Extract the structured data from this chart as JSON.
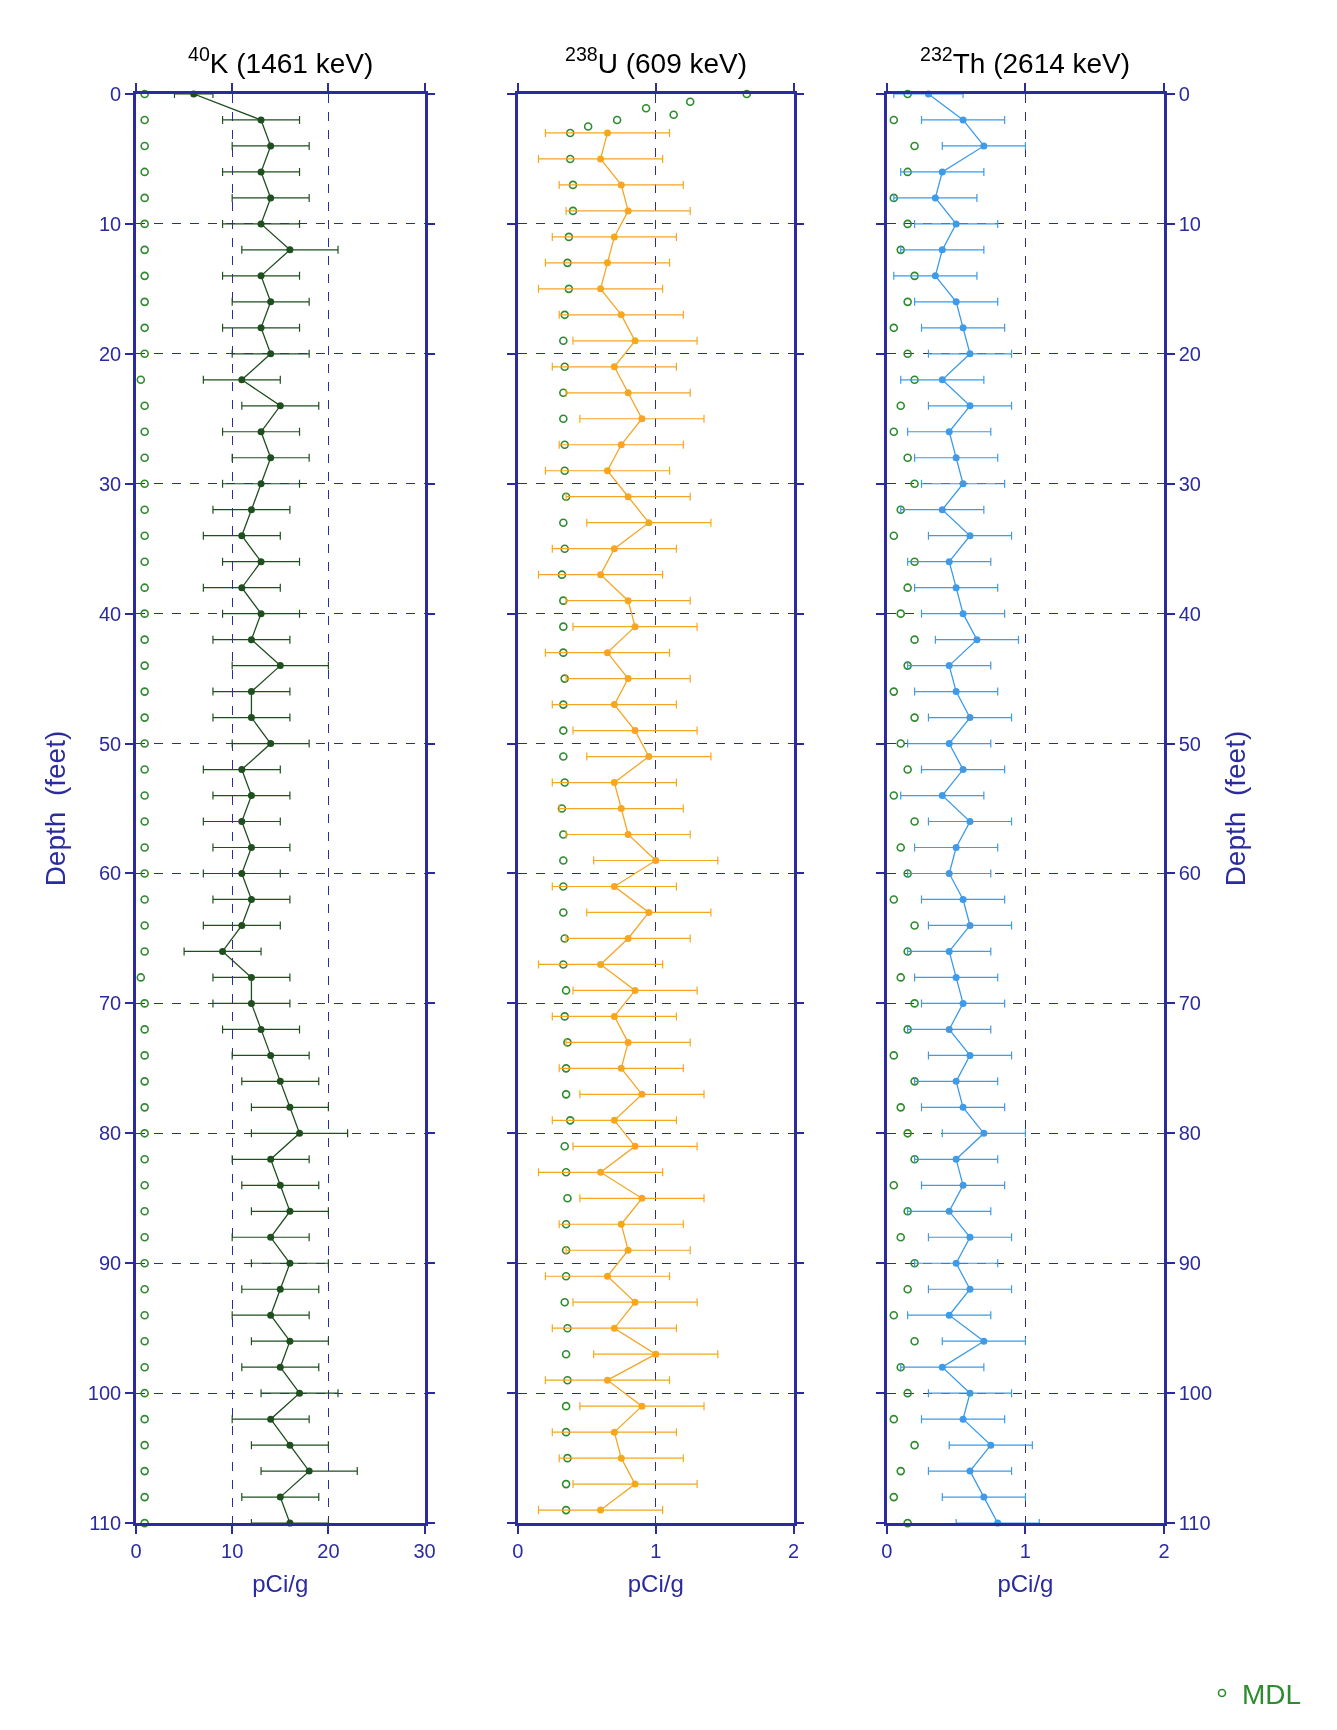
{
  "chart_data": [
    {
      "type": "line",
      "title": "$^{40}$K (1461 keV)",
      "xlabel": "pCi/g",
      "ylabel": "Depth  (feet)",
      "xlim": [
        0,
        30
      ],
      "xticks": [
        0,
        10,
        20,
        30
      ],
      "ylim": [
        110,
        0
      ],
      "yticks": [
        0,
        10,
        20,
        30,
        40,
        50,
        60,
        70,
        80,
        90,
        100,
        110
      ],
      "grid": true,
      "legend": false,
      "series": [
        {
          "type": "scatter",
          "color": "#2e8b2e",
          "marker": "circle",
          "x": [
            0.9,
            0.9,
            0.9,
            0.9,
            0.9,
            0.9,
            0.9,
            0.9,
            0.9,
            0.9,
            0.9,
            0.5,
            0.9,
            0.9,
            0.9,
            0.9,
            0.9,
            0.9,
            0.9,
            0.9,
            0.9,
            0.9,
            0.9,
            0.9,
            0.9,
            0.9,
            0.9,
            0.9,
            0.9,
            0.9,
            0.9,
            0.9,
            0.9,
            0.9,
            0.5,
            0.9,
            0.9,
            0.9,
            0.9,
            0.9,
            0.9,
            0.9,
            0.9,
            0.9,
            0.9,
            0.9,
            0.9,
            0.9,
            0.9,
            0.9,
            0.9,
            0.9,
            0.9,
            0.9,
            0.9,
            0.9
          ],
          "values": [
            0,
            2,
            4,
            6,
            8,
            10,
            12,
            14,
            16,
            18,
            20,
            22,
            24,
            26,
            28,
            30,
            32,
            34,
            36,
            38,
            40,
            42,
            44,
            46,
            48,
            50,
            52,
            54,
            56,
            58,
            60,
            62,
            64,
            66,
            68,
            70,
            72,
            74,
            76,
            78,
            80,
            82,
            84,
            86,
            88,
            90,
            92,
            94,
            96,
            98,
            100,
            102,
            104,
            106,
            108,
            110
          ]
        },
        {
          "color": "#1f4f1f",
          "marker": "circle",
          "line_style": "solid",
          "x": [
            6,
            13,
            14,
            13,
            14,
            13,
            16,
            13,
            14,
            13,
            14,
            11,
            15,
            13,
            14,
            13,
            12,
            11,
            13,
            11,
            13,
            12,
            15,
            12,
            12,
            14,
            11,
            12,
            11,
            12,
            11,
            12,
            11,
            9,
            12,
            12,
            13,
            14,
            15,
            16,
            17,
            14,
            15,
            16,
            14,
            16,
            15,
            14,
            16,
            15,
            17,
            14,
            16,
            18,
            15,
            16
          ],
          "values": [
            0,
            2,
            4,
            6,
            8,
            10,
            12,
            14,
            16,
            18,
            20,
            22,
            24,
            26,
            28,
            30,
            32,
            34,
            36,
            38,
            40,
            42,
            44,
            46,
            48,
            50,
            52,
            54,
            56,
            58,
            60,
            62,
            64,
            66,
            68,
            70,
            72,
            74,
            76,
            78,
            80,
            82,
            84,
            86,
            88,
            90,
            92,
            94,
            96,
            98,
            100,
            102,
            104,
            106,
            108,
            110
          ],
          "xerrors": [
            2,
            4,
            4,
            4,
            4,
            4,
            5,
            4,
            4,
            4,
            4,
            4,
            4,
            4,
            4,
            4,
            4,
            4,
            4,
            4,
            4,
            4,
            5,
            4,
            4,
            4,
            4,
            4,
            4,
            4,
            4,
            4,
            4,
            4,
            4,
            4,
            4,
            4,
            4,
            4,
            5,
            4,
            4,
            4,
            4,
            4,
            4,
            4,
            4,
            4,
            4,
            4,
            4,
            5,
            4,
            4
          ]
        }
      ]
    },
    {
      "type": "line",
      "title": "$^{238}$U (609 keV)",
      "xlabel": "pCi/g",
      "xlim": [
        0,
        2
      ],
      "xticks": [
        0,
        1,
        2
      ],
      "ylim": [
        110,
        0
      ],
      "yticks": [
        0,
        10,
        20,
        30,
        40,
        50,
        60,
        70,
        80,
        90,
        100,
        110
      ],
      "tick_labels": "x",
      "grid": true,
      "legend": false,
      "series": [
        {
          "type": "scatter",
          "color": "#2e8b2e",
          "marker": "circle",
          "x": [
            1.66,
            1.25,
            0.93,
            1.13,
            0.72,
            0.51,
            0.38,
            0.38,
            0.4,
            0.4,
            0.37,
            0.36,
            0.37,
            0.34,
            0.33,
            0.34,
            0.33,
            0.33,
            0.34,
            0.34,
            0.35,
            0.33,
            0.34,
            0.32,
            0.33,
            0.33,
            0.33,
            0.34,
            0.33,
            0.33,
            0.33,
            0.34,
            0.32,
            0.33,
            0.33,
            0.33,
            0.33,
            0.34,
            0.33,
            0.35,
            0.34,
            0.36,
            0.35,
            0.35,
            0.38,
            0.34,
            0.35,
            0.36,
            0.35,
            0.35,
            0.35,
            0.34,
            0.36,
            0.35,
            0.36,
            0.35,
            0.35,
            0.36,
            0.35,
            0.35
          ],
          "values": [
            0,
            0.6,
            1.1,
            1.6,
            2,
            2.5,
            3,
            5,
            7,
            9,
            11,
            13,
            15,
            17,
            19,
            21,
            23,
            25,
            27,
            29,
            31,
            33,
            35,
            37,
            39,
            41,
            43,
            45,
            47,
            49,
            51,
            53,
            55,
            57,
            59,
            61,
            63,
            65,
            67,
            69,
            71,
            73,
            75,
            77,
            79,
            81,
            83,
            85,
            87,
            89,
            91,
            93,
            95,
            97,
            99,
            101,
            103,
            105,
            107,
            109
          ]
        },
        {
          "color": "#f5a623",
          "marker": "circle",
          "line_style": "solid",
          "x": [
            0.65,
            0.6,
            0.75,
            0.8,
            0.7,
            0.65,
            0.6,
            0.75,
            0.85,
            0.7,
            0.8,
            0.9,
            0.75,
            0.65,
            0.8,
            0.95,
            0.7,
            0.6,
            0.8,
            0.85,
            0.65,
            0.8,
            0.7,
            0.85,
            0.95,
            0.7,
            0.75,
            0.8,
            1.0,
            0.7,
            0.95,
            0.8,
            0.6,
            0.85,
            0.7,
            0.8,
            0.75,
            0.9,
            0.7,
            0.85,
            0.6,
            0.9,
            0.75,
            0.8,
            0.65,
            0.85,
            0.7,
            1.0,
            0.65,
            0.9,
            0.7,
            0.75,
            0.85,
            0.6
          ],
          "values": [
            3,
            5,
            7,
            9,
            11,
            13,
            15,
            17,
            19,
            21,
            23,
            25,
            27,
            29,
            31,
            33,
            35,
            37,
            39,
            41,
            43,
            45,
            47,
            49,
            51,
            53,
            55,
            57,
            59,
            61,
            63,
            65,
            67,
            69,
            71,
            73,
            75,
            77,
            79,
            81,
            83,
            85,
            87,
            89,
            91,
            93,
            95,
            97,
            99,
            101,
            103,
            105,
            107,
            109
          ],
          "xerrors": [
            0.45,
            0.45,
            0.45,
            0.45,
            0.45,
            0.45,
            0.45,
            0.45,
            0.45,
            0.45,
            0.45,
            0.45,
            0.45,
            0.45,
            0.45,
            0.45,
            0.45,
            0.45,
            0.45,
            0.45,
            0.45,
            0.45,
            0.45,
            0.45,
            0.45,
            0.45,
            0.45,
            0.45,
            0.45,
            0.45,
            0.45,
            0.45,
            0.45,
            0.45,
            0.45,
            0.45,
            0.45,
            0.45,
            0.45,
            0.45,
            0.45,
            0.45,
            0.45,
            0.45,
            0.45,
            0.45,
            0.45,
            0.45,
            0.45,
            0.45,
            0.45,
            0.45,
            0.45,
            0.45
          ]
        }
      ]
    },
    {
      "type": "line",
      "title": "$^{232}$Th (2614 keV)",
      "xlabel": "pCi/g",
      "y2label": "Depth  (feet)",
      "xlim": [
        0,
        2
      ],
      "xticks": [
        0,
        1,
        2
      ],
      "y2lim": [
        110,
        0
      ],
      "y2ticks": [
        0,
        10,
        20,
        30,
        40,
        50,
        60,
        70,
        80,
        90,
        100,
        110
      ],
      "grid": true,
      "legend": "bottom right",
      "series": [
        {
          "type": "scatter",
          "name": "MDL",
          "color": "#2e8b2e",
          "marker": "circle",
          "axis": "y2",
          "x": [
            0.15,
            0.05,
            0.2,
            0.15,
            0.05,
            0.15,
            0.1,
            0.2,
            0.15,
            0.05,
            0.15,
            0.2,
            0.1,
            0.05,
            0.15,
            0.2,
            0.1,
            0.05,
            0.2,
            0.15,
            0.1,
            0.2,
            0.15,
            0.05,
            0.2,
            0.1,
            0.15,
            0.05,
            0.2,
            0.1,
            0.15,
            0.05,
            0.2,
            0.15,
            0.1,
            0.2,
            0.15,
            0.05,
            0.2,
            0.1,
            0.15,
            0.2,
            0.05,
            0.15,
            0.1,
            0.2,
            0.15,
            0.05,
            0.2,
            0.1,
            0.15,
            0.05,
            0.2,
            0.1,
            0.05,
            0.15
          ],
          "values": [
            0,
            2,
            4,
            6,
            8,
            10,
            12,
            14,
            16,
            18,
            20,
            22,
            24,
            26,
            28,
            30,
            32,
            34,
            36,
            38,
            40,
            42,
            44,
            46,
            48,
            50,
            52,
            54,
            56,
            58,
            60,
            62,
            64,
            66,
            68,
            70,
            72,
            74,
            76,
            78,
            80,
            82,
            84,
            86,
            88,
            90,
            92,
            94,
            96,
            98,
            100,
            102,
            104,
            106,
            108,
            110
          ]
        },
        {
          "color": "#3d9be9",
          "marker": "circle",
          "line_style": "solid",
          "axis": "y2",
          "x": [
            0.3,
            0.55,
            0.7,
            0.4,
            0.35,
            0.5,
            0.4,
            0.35,
            0.5,
            0.55,
            0.6,
            0.4,
            0.6,
            0.45,
            0.5,
            0.55,
            0.4,
            0.6,
            0.45,
            0.5,
            0.55,
            0.65,
            0.45,
            0.5,
            0.6,
            0.45,
            0.55,
            0.4,
            0.6,
            0.5,
            0.45,
            0.55,
            0.6,
            0.45,
            0.5,
            0.55,
            0.45,
            0.6,
            0.5,
            0.55,
            0.7,
            0.5,
            0.55,
            0.45,
            0.6,
            0.5,
            0.6,
            0.45,
            0.7,
            0.4,
            0.6,
            0.55,
            0.75,
            0.6,
            0.7,
            0.8
          ],
          "values": [
            0,
            2,
            4,
            6,
            8,
            10,
            12,
            14,
            16,
            18,
            20,
            22,
            24,
            26,
            28,
            30,
            32,
            34,
            36,
            38,
            40,
            42,
            44,
            46,
            48,
            50,
            52,
            54,
            56,
            58,
            60,
            62,
            64,
            66,
            68,
            70,
            72,
            74,
            76,
            78,
            80,
            82,
            84,
            86,
            88,
            90,
            92,
            94,
            96,
            98,
            100,
            102,
            104,
            106,
            108,
            110
          ],
          "xerrors": [
            0.25,
            0.3,
            0.3,
            0.3,
            0.3,
            0.3,
            0.3,
            0.3,
            0.3,
            0.3,
            0.3,
            0.3,
            0.3,
            0.3,
            0.3,
            0.3,
            0.3,
            0.3,
            0.3,
            0.3,
            0.3,
            0.3,
            0.3,
            0.3,
            0.3,
            0.3,
            0.3,
            0.3,
            0.3,
            0.3,
            0.3,
            0.3,
            0.3,
            0.3,
            0.3,
            0.3,
            0.3,
            0.3,
            0.3,
            0.3,
            0.3,
            0.3,
            0.3,
            0.3,
            0.3,
            0.3,
            0.3,
            0.3,
            0.3,
            0.3,
            0.3,
            0.3,
            0.3,
            0.3,
            0.3,
            0.3
          ]
        }
      ]
    }
  ]
}
